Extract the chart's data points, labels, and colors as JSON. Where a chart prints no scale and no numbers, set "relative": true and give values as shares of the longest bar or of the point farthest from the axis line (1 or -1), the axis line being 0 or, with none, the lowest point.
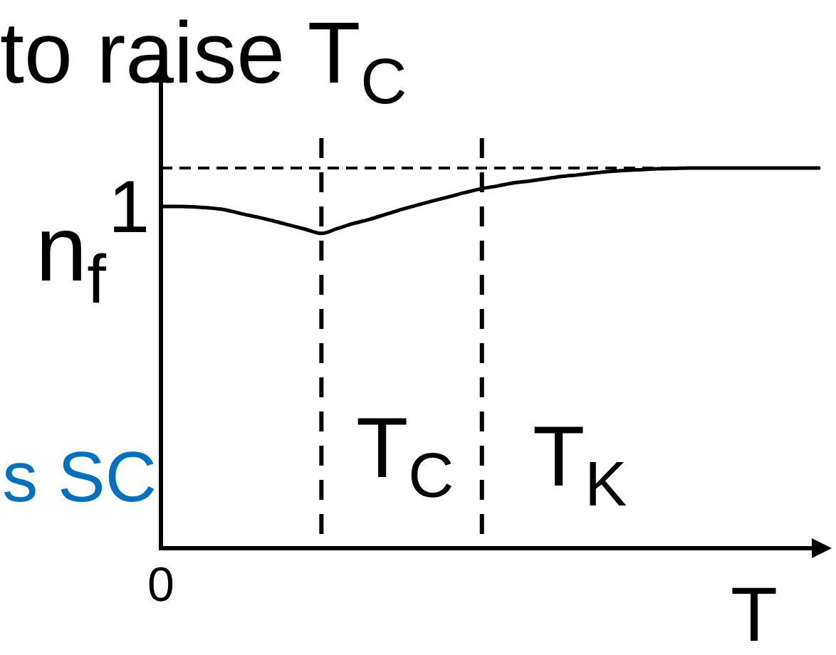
{
  "chart_data": {
    "type": "line",
    "title": "to raise T$_{C}$",
    "xlabel": "T",
    "ylabel": "n$_{f}$",
    "relative": true,
    "annotations": [
      "s SC",
      "1",
      "0",
      "T$_{C}$",
      "T$_{K}$"
    ],
    "categories": [
      null,
      null,
      null,
      null,
      null,
      null,
      null,
      null,
      null,
      null,
      null,
      null,
      null,
      null,
      null,
      null,
      null,
      null,
      null,
      null,
      null,
      null,
      null,
      null,
      null,
      null,
      null,
      null,
      null,
      null,
      null,
      null,
      null,
      null,
      null,
      null,
      null,
      null,
      null,
      null,
      null,
      null
    ],
    "values": [
      0.899,
      0.899,
      0.898,
      0.895,
      0.89,
      0.88,
      0.871,
      0.861,
      0.85,
      0.839,
      0.828,
      0.841,
      0.854,
      0.865,
      0.878,
      0.891,
      0.903,
      0.914,
      0.925,
      0.936,
      0.946,
      0.953,
      0.961,
      0.966,
      0.972,
      0.978,
      0.982,
      0.987,
      0.991,
      0.994,
      0.996,
      0.998,
      0.999,
      1,
      1,
      1,
      1,
      1,
      1,
      1,
      1,
      1
    ],
    "color": "#000000",
    "grid": false,
    "legend": false,
    "marker": "none",
    "line_style": "solid",
    "ref_lines": [
      {
        "axis": "y",
        "value": 1,
        "line_style": "dashed",
        "color": "#000000"
      }
    ]
  }
}
